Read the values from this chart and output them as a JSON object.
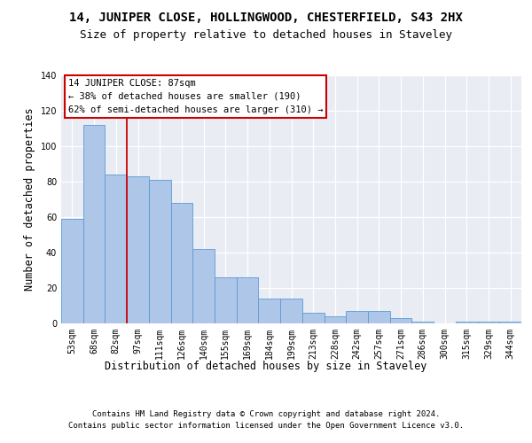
{
  "title": "14, JUNIPER CLOSE, HOLLINGWOOD, CHESTERFIELD, S43 2HX",
  "subtitle": "Size of property relative to detached houses in Staveley",
  "xlabel": "Distribution of detached houses by size in Staveley",
  "ylabel": "Number of detached properties",
  "categories": [
    "53sqm",
    "68sqm",
    "82sqm",
    "97sqm",
    "111sqm",
    "126sqm",
    "140sqm",
    "155sqm",
    "169sqm",
    "184sqm",
    "199sqm",
    "213sqm",
    "228sqm",
    "242sqm",
    "257sqm",
    "271sqm",
    "286sqm",
    "300sqm",
    "315sqm",
    "329sqm",
    "344sqm"
  ],
  "values": [
    59,
    112,
    84,
    83,
    81,
    68,
    42,
    26,
    26,
    14,
    14,
    6,
    4,
    7,
    7,
    3,
    1,
    0,
    1,
    1,
    1
  ],
  "bar_color": "#aec6e8",
  "bar_edge_color": "#5b9bd5",
  "vline_x": 2.5,
  "vline_color": "#cc0000",
  "annotation_text": "14 JUNIPER CLOSE: 87sqm\n← 38% of detached houses are smaller (190)\n62% of semi-detached houses are larger (310) →",
  "annotation_box_color": "#ffffff",
  "annotation_box_edge": "#cc0000",
  "ylim": [
    0,
    140
  ],
  "yticks": [
    0,
    20,
    40,
    60,
    80,
    100,
    120,
    140
  ],
  "bg_color": "#eaecf4",
  "footer_line1": "Contains HM Land Registry data © Crown copyright and database right 2024.",
  "footer_line2": "Contains public sector information licensed under the Open Government Licence v3.0.",
  "title_fontsize": 10,
  "subtitle_fontsize": 9,
  "axis_label_fontsize": 8.5,
  "tick_fontsize": 7,
  "footer_fontsize": 6.5
}
